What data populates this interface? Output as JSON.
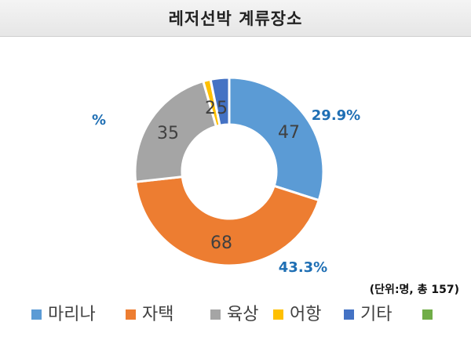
{
  "title": "레저선박 계류장소",
  "chart_data": {
    "type": "pie",
    "style": "donut",
    "categories": [
      "마리나",
      "자택",
      "육상",
      "어항",
      "기타",
      ""
    ],
    "values": [
      47,
      68,
      35,
      2,
      5,
      0
    ],
    "colors": [
      "#5b9bd5",
      "#ed7d31",
      "#a5a5a5",
      "#ffc000",
      "#4472c4",
      "#70ad47"
    ],
    "data_labels": [
      "47",
      "68",
      "35",
      "2",
      "5",
      ""
    ],
    "percent_labels": [
      "29.9%",
      "43.3%"
    ],
    "stray_label": "%",
    "unit_note": "(단위:명, 총 157)",
    "legend_position": "bottom"
  }
}
